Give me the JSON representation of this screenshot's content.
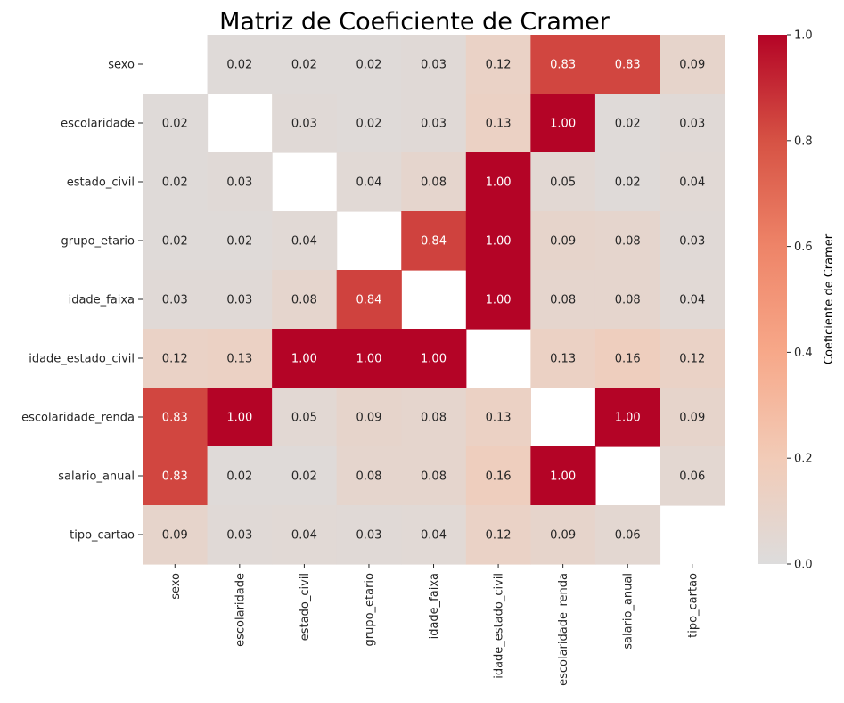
{
  "chart_data": {
    "type": "heatmap",
    "title": "Matriz de Coeficiente de Cramer",
    "variables": [
      "sexo",
      "escolaridade",
      "estado_civil",
      "grupo_etario",
      "idade_faixa",
      "idade_estado_civil",
      "escolaridade_renda",
      "salario_anual",
      "tipo_cartao"
    ],
    "values": [
      [
        null,
        0.02,
        0.02,
        0.02,
        0.03,
        0.12,
        0.83,
        0.83,
        0.09
      ],
      [
        0.02,
        null,
        0.03,
        0.02,
        0.03,
        0.13,
        1.0,
        0.02,
        0.03
      ],
      [
        0.02,
        0.03,
        null,
        0.04,
        0.08,
        1.0,
        0.05,
        0.02,
        0.04
      ],
      [
        0.02,
        0.02,
        0.04,
        null,
        0.84,
        1.0,
        0.09,
        0.08,
        0.03
      ],
      [
        0.03,
        0.03,
        0.08,
        0.84,
        null,
        1.0,
        0.08,
        0.08,
        0.04
      ],
      [
        0.12,
        0.13,
        1.0,
        1.0,
        1.0,
        null,
        0.13,
        0.16,
        0.12
      ],
      [
        0.83,
        1.0,
        0.05,
        0.09,
        0.08,
        0.13,
        null,
        1.0,
        0.09
      ],
      [
        0.83,
        0.02,
        0.02,
        0.08,
        0.08,
        0.16,
        1.0,
        null,
        0.06
      ],
      [
        0.09,
        0.03,
        0.04,
        0.03,
        0.04,
        0.12,
        0.09,
        0.06,
        null
      ]
    ],
    "value_format": "2 decimals",
    "vmin": 0.0,
    "vmax": 1.0,
    "colormap": "coolwarm",
    "colormap_stops": [
      "#dddcdc",
      "#f2cbb7",
      "#f7a889",
      "#ee8468",
      "#d65244",
      "#b40426"
    ],
    "annotation_colors": {
      "dark": "#262626",
      "light": "#ffffff"
    },
    "colorbar": {
      "label": "Coeficiente de Cramer",
      "ticks": [
        "0.0",
        "0.2",
        "0.4",
        "0.6",
        "0.8",
        "1.0"
      ],
      "tick_values": [
        0.0,
        0.2,
        0.4,
        0.6,
        0.8,
        1.0
      ]
    },
    "grid": false,
    "diagonal": "masked (blank)"
  }
}
